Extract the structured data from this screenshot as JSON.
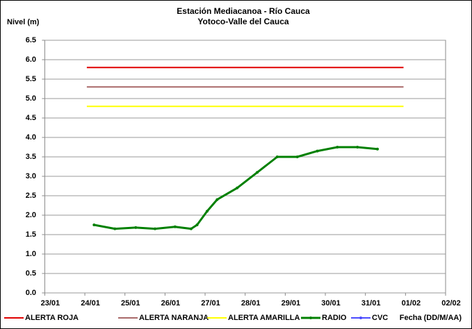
{
  "chart_data": {
    "type": "line",
    "title": "Estación Mediacanoa - Río Cauca",
    "subtitle": "Yotoco-Valle del Cauca",
    "y_label": "Nivel (m)",
    "x_label": "Fecha (DD/M/AA)",
    "xlim": [
      23,
      33
    ],
    "xticks": [
      {
        "value": 23,
        "label": "23/01"
      },
      {
        "value": 24,
        "label": "24/01"
      },
      {
        "value": 25,
        "label": "25/01"
      },
      {
        "value": 26,
        "label": "26/01"
      },
      {
        "value": 27,
        "label": "27/01"
      },
      {
        "value": 28,
        "label": "28/01"
      },
      {
        "value": 29,
        "label": "29/01"
      },
      {
        "value": 30,
        "label": "30/01"
      },
      {
        "value": 31,
        "label": "31/01"
      },
      {
        "value": 32,
        "label": "01/02"
      },
      {
        "value": 33,
        "label": "02/02"
      }
    ],
    "ylim": [
      0,
      6.5
    ],
    "yticks": [
      {
        "value": 0,
        "label": "0.0"
      },
      0.5,
      {
        "value": 1,
        "label": "1.0"
      },
      1.5,
      {
        "value": 2,
        "label": "2.0"
      },
      2.5,
      {
        "value": 3,
        "label": "3.0"
      },
      3.5,
      {
        "value": 4,
        "label": "4.0"
      },
      4.5,
      {
        "value": 5,
        "label": "5.0"
      },
      5.5,
      {
        "value": 6,
        "label": "6.0"
      },
      6.5
    ],
    "grid": true,
    "legend": "bottom",
    "series": [
      {
        "name": "ALERTA ROJA",
        "color": "#e00000",
        "x": [
          24.05,
          31.95
        ],
        "values": [
          5.8,
          5.8
        ]
      },
      {
        "name": "ALERTA NARANJA",
        "color": "#a86868",
        "x": [
          24.05,
          31.95
        ],
        "values": [
          5.3,
          5.3
        ]
      },
      {
        "name": "ALERTA AMARILLA",
        "color": "#ffff00",
        "x": [
          24.05,
          31.95
        ],
        "values": [
          4.8,
          4.8
        ]
      },
      {
        "name": "RADIO",
        "color": "#008000",
        "markers": true,
        "x": [
          24.23,
          24.75,
          25.27,
          25.75,
          26.25,
          26.65,
          26.8,
          27.05,
          27.3,
          27.8,
          28.3,
          28.8,
          29.3,
          29.8,
          30.3,
          30.8,
          31.3
        ],
        "values": [
          1.75,
          1.65,
          1.68,
          1.65,
          1.7,
          1.65,
          1.75,
          2.1,
          2.4,
          2.7,
          3.1,
          3.5,
          3.5,
          3.65,
          3.75,
          3.75,
          3.7
        ]
      },
      {
        "name": "CVC",
        "color": "#4a4aff",
        "markers": true,
        "x": [],
        "values": []
      }
    ]
  }
}
